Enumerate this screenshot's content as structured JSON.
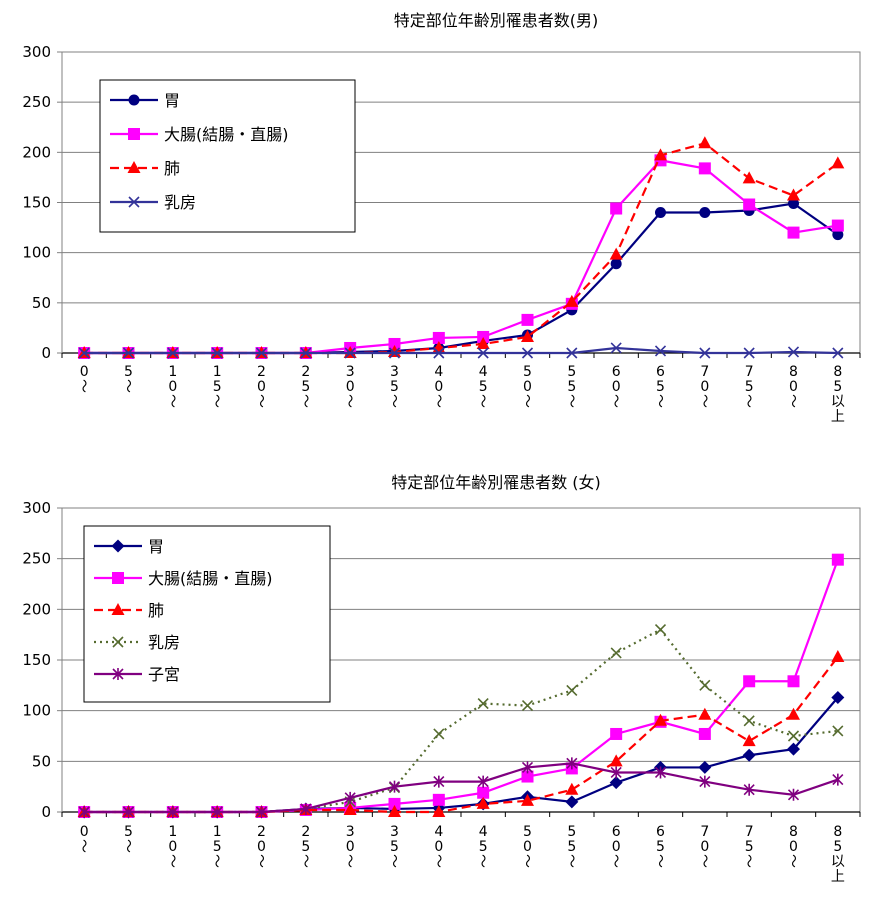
{
  "chart_data": [
    {
      "type": "line",
      "title": "特定部位年齢別罹患者数(男)",
      "ylim": [
        0,
        300
      ],
      "yticks": [
        "0",
        "50",
        "100",
        "150",
        "200",
        "250",
        "300"
      ],
      "categories": [
        "0〜",
        "5〜",
        "10〜",
        "15〜",
        "20〜",
        "25〜",
        "30〜",
        "35〜",
        "40〜",
        "45〜",
        "50〜",
        "55〜",
        "60〜",
        "65〜",
        "70〜",
        "75〜",
        "80〜",
        "85以上"
      ],
      "tick_lines": [
        [
          "0",
          "〜"
        ],
        [
          "5",
          "〜"
        ],
        [
          "1",
          "0",
          "〜"
        ],
        [
          "1",
          "5",
          "〜"
        ],
        [
          "2",
          "0",
          "〜"
        ],
        [
          "2",
          "5",
          "〜"
        ],
        [
          "3",
          "0",
          "〜"
        ],
        [
          "3",
          "5",
          "〜"
        ],
        [
          "4",
          "0",
          "〜"
        ],
        [
          "4",
          "5",
          "〜"
        ],
        [
          "5",
          "0",
          "〜"
        ],
        [
          "5",
          "5",
          "〜"
        ],
        [
          "6",
          "0",
          "〜"
        ],
        [
          "6",
          "5",
          "〜"
        ],
        [
          "7",
          "0",
          "〜"
        ],
        [
          "7",
          "5",
          "〜"
        ],
        [
          "8",
          "0",
          "〜"
        ],
        [
          "8",
          "5",
          "以",
          "上"
        ]
      ],
      "grid": true,
      "legend_position": "top-left",
      "series": [
        {
          "name": "胃",
          "color": "#000080",
          "marker": "circle",
          "dash": "solid",
          "values": [
            0,
            0,
            0,
            0,
            0,
            0,
            1,
            2,
            5,
            12,
            18,
            43,
            89,
            140,
            140,
            142,
            149,
            118
          ]
        },
        {
          "name": "大腸(結腸・直腸)",
          "color": "#ff00ff",
          "marker": "square",
          "dash": "solid",
          "values": [
            0,
            0,
            0,
            0,
            0,
            0,
            5,
            9,
            15,
            16,
            33,
            49,
            144,
            192,
            184,
            148,
            120,
            127
          ]
        },
        {
          "name": "肺",
          "color": "#ff0000",
          "marker": "triangle",
          "dash": "dashed",
          "values": [
            0,
            0,
            0,
            0,
            0,
            0,
            0,
            1,
            5,
            9,
            16,
            51,
            98,
            197,
            209,
            174,
            157,
            189
          ]
        },
        {
          "name": "乳房",
          "color": "#333399",
          "marker": "x",
          "dash": "solid",
          "values": [
            0,
            0,
            0,
            0,
            0,
            0,
            0,
            0,
            0,
            0,
            0,
            0,
            5,
            2,
            0,
            0,
            1,
            0
          ]
        }
      ]
    },
    {
      "type": "line",
      "title": "特定部位年齢別罹患者数 (女)",
      "ylim": [
        0,
        300
      ],
      "yticks": [
        "0",
        "50",
        "100",
        "150",
        "200",
        "250",
        "300"
      ],
      "categories": [
        "0〜",
        "5〜",
        "10〜",
        "15〜",
        "20〜",
        "25〜",
        "30〜",
        "35〜",
        "40〜",
        "45〜",
        "50〜",
        "55〜",
        "60〜",
        "65〜",
        "70〜",
        "75〜",
        "80〜",
        "85以上"
      ],
      "tick_lines": [
        [
          "0",
          "〜"
        ],
        [
          "5",
          "〜"
        ],
        [
          "1",
          "0",
          "〜"
        ],
        [
          "1",
          "5",
          "〜"
        ],
        [
          "2",
          "0",
          "〜"
        ],
        [
          "2",
          "5",
          "〜"
        ],
        [
          "3",
          "0",
          "〜"
        ],
        [
          "3",
          "5",
          "〜"
        ],
        [
          "4",
          "0",
          "〜"
        ],
        [
          "4",
          "5",
          "〜"
        ],
        [
          "5",
          "0",
          "〜"
        ],
        [
          "5",
          "5",
          "〜"
        ],
        [
          "6",
          "0",
          "〜"
        ],
        [
          "6",
          "5",
          "〜"
        ],
        [
          "7",
          "0",
          "〜"
        ],
        [
          "7",
          "5",
          "〜"
        ],
        [
          "8",
          "0",
          "〜"
        ],
        [
          "8",
          "5",
          "以",
          "上"
        ]
      ],
      "grid": true,
      "legend_position": "top-left",
      "series": [
        {
          "name": "胃",
          "color": "#000080",
          "marker": "diamond",
          "dash": "solid",
          "values": [
            0,
            0,
            0,
            0,
            0,
            3,
            4,
            3,
            4,
            8,
            15,
            10,
            29,
            44,
            44,
            56,
            62,
            113
          ]
        },
        {
          "name": "大腸(結腸・直腸)",
          "color": "#ff00ff",
          "marker": "square",
          "dash": "solid",
          "values": [
            0,
            0,
            0,
            0,
            0,
            2,
            4,
            8,
            12,
            19,
            35,
            43,
            77,
            89,
            77,
            129,
            129,
            249
          ]
        },
        {
          "name": "肺",
          "color": "#ff0000",
          "marker": "triangle",
          "dash": "dashed",
          "values": [
            0,
            0,
            0,
            0,
            0,
            2,
            2,
            0,
            0,
            8,
            11,
            22,
            50,
            90,
            96,
            70,
            96,
            153
          ]
        },
        {
          "name": "乳房",
          "color": "#556b2f",
          "marker": "x",
          "dash": "dotted",
          "values": [
            0,
            0,
            0,
            0,
            0,
            3,
            10,
            24,
            77,
            107,
            105,
            120,
            157,
            180,
            125,
            90,
            75,
            80
          ]
        },
        {
          "name": "子宮",
          "color": "#800080",
          "marker": "star",
          "dash": "solid",
          "values": [
            0,
            0,
            0,
            0,
            0,
            3,
            14,
            25,
            30,
            30,
            44,
            48,
            39,
            39,
            30,
            22,
            17,
            32
          ]
        }
      ]
    }
  ]
}
